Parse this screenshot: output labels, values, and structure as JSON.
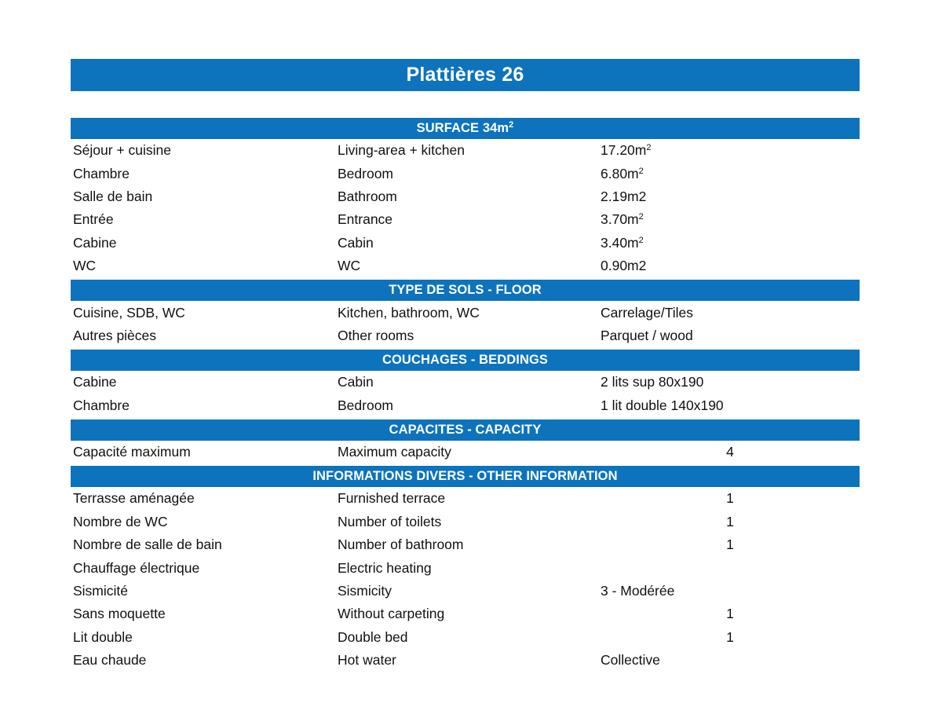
{
  "page": {
    "title": "Plattières 26"
  },
  "colors": {
    "accent_blue": "#0d73bd",
    "header_text": "#ffffff",
    "body_text": "#111111",
    "background": "#ffffff"
  },
  "sections": [
    {
      "header": "SURFACE 34m",
      "header_sup": "2",
      "rows": [
        {
          "fr": "Séjour + cuisine",
          "en": "Living-area + kitchen",
          "value": "17.20m",
          "value_sup": "2"
        },
        {
          "fr": "Chambre",
          "en": "Bedroom",
          "value": "6.80m",
          "value_sup": "2"
        },
        {
          "fr": "Salle de bain",
          "en": "Bathroom",
          "value": "2.19m2"
        },
        {
          "fr": "Entrée",
          "en": "Entrance",
          "value": "3.70m",
          "value_sup": "2"
        },
        {
          "fr": "Cabine",
          "en": "Cabin",
          "value": "3.40m",
          "value_sup": "2"
        },
        {
          "fr": "WC",
          "en": "WC",
          "value": "0.90m2"
        }
      ]
    },
    {
      "header": "TYPE DE SOLS - FLOOR",
      "rows": [
        {
          "fr": "Cuisine, SDB, WC",
          "en": "Kitchen, bathroom, WC",
          "value": "Carrelage/Tiles"
        },
        {
          "fr": "Autres pièces",
          "en": "Other rooms",
          "value": "Parquet / wood"
        }
      ]
    },
    {
      "header": "COUCHAGES - BEDDINGS",
      "rows": [
        {
          "fr": "Cabine",
          "en": "Cabin",
          "value": "2 lits sup 80x190"
        },
        {
          "fr": "Chambre",
          "en": "Bedroom",
          "value": "1 lit double 140x190"
        }
      ]
    },
    {
      "header": "CAPACITES - CAPACITY",
      "rows": [
        {
          "fr": "Capacité maximum",
          "en": "Maximum capacity",
          "num": "4"
        }
      ]
    },
    {
      "header": "INFORMATIONS DIVERS - OTHER INFORMATION",
      "rows": [
        {
          "fr": "Terrasse aménagée",
          "en": "Furnished terrace",
          "num": "1"
        },
        {
          "fr": "Nombre de WC",
          "en": "Number of toilets",
          "num": "1"
        },
        {
          "fr": "Nombre de salle de bain",
          "en": "Number of bathroom",
          "num": "1"
        },
        {
          "fr": "Chauffage électrique",
          "en": "Electric heating"
        },
        {
          "fr": "Sismicité",
          "en": "Sismicity",
          "value": "3 - Modérée"
        },
        {
          "fr": "Sans moquette",
          "en": "Without carpeting",
          "num": "1"
        },
        {
          "fr": "Lit double",
          "en": "Double bed",
          "num": "1"
        },
        {
          "fr": "Eau chaude",
          "en": "Hot water",
          "value": "Collective"
        }
      ]
    }
  ]
}
